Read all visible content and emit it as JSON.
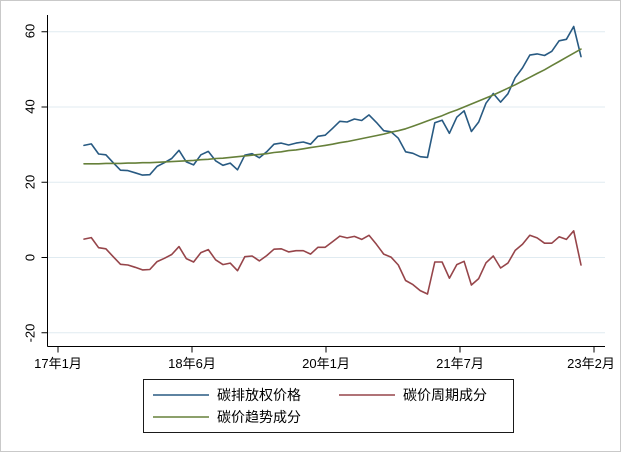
{
  "figure": {
    "background": "#ffffff",
    "border_color": "#c9c9c9",
    "axis_color": "#000000",
    "grid_color": "#e0ebf1",
    "legend_border_color": "#1a1a1a"
  },
  "y_axis": {
    "ticks": [
      "-20",
      "0",
      "20",
      "40",
      "60"
    ],
    "values": [
      -20,
      0,
      20,
      40,
      60
    ]
  },
  "x_axis": {
    "ticks": [
      "17年1月",
      "18年6月",
      "20年1月",
      "21年7月",
      "23年2月"
    ]
  },
  "legend": {
    "items": [
      {
        "label": "碳排放权价格",
        "color": "#285a82"
      },
      {
        "label": "碳价周期成分",
        "color": "#96454a"
      },
      {
        "label": "碳价趋势成分",
        "color": "#66803a"
      }
    ]
  },
  "chart_data": {
    "type": "line",
    "title": "",
    "xlabel": "",
    "ylabel": "",
    "grid": true,
    "legend_position": "bottom",
    "ylim": [
      -23,
      64
    ],
    "x_tick_labels": [
      "17年1月",
      "18年6月",
      "20年1月",
      "21年7月",
      "23年2月"
    ],
    "x": [
      "2017m5",
      "2017m6",
      "2017m7",
      "2017m8",
      "2017m9",
      "2017m10",
      "2017m11",
      "2017m12",
      "2018m1",
      "2018m2",
      "2018m3",
      "2018m4",
      "2018m5",
      "2018m6",
      "2018m7",
      "2018m8",
      "2018m9",
      "2018m10",
      "2018m11",
      "2018m12",
      "2019m1",
      "2019m2",
      "2019m3",
      "2019m4",
      "2019m5",
      "2019m6",
      "2019m7",
      "2019m8",
      "2019m9",
      "2019m10",
      "2019m11",
      "2019m12",
      "2020m1",
      "2020m2",
      "2020m3",
      "2020m4",
      "2020m5",
      "2020m6",
      "2020m7",
      "2020m8",
      "2020m9",
      "2020m10",
      "2020m11",
      "2020m12",
      "2021m1",
      "2021m2",
      "2021m3",
      "2021m4",
      "2021m5",
      "2021m6",
      "2021m7",
      "2021m8",
      "2021m9",
      "2021m10",
      "2021m11",
      "2021m12",
      "2022m1",
      "2022m2",
      "2022m3",
      "2022m4",
      "2022m5",
      "2022m6",
      "2022m7",
      "2022m8",
      "2022m9",
      "2022m10",
      "2022m11",
      "2022m12",
      "2023m1"
    ],
    "series": [
      {
        "name": "碳排放权价格",
        "color": "#285a82",
        "values": [
          29.8,
          30.2,
          27.5,
          27.3,
          25.2,
          23.2,
          23.1,
          22.5,
          21.9,
          22.0,
          24.2,
          25.2,
          26.3,
          28.5,
          25.4,
          24.6,
          27.3,
          28.2,
          25.7,
          24.5,
          25.1,
          23.3,
          27.2,
          27.6,
          26.5,
          28.1,
          30.1,
          30.4,
          29.9,
          30.4,
          30.7,
          30.1,
          32.2,
          32.5,
          34.3,
          36.2,
          36.0,
          36.8,
          36.4,
          37.9,
          35.9,
          33.7,
          33.4,
          31.7,
          28.1,
          27.7,
          26.8,
          26.6,
          35.8,
          36.5,
          33.0,
          37.3,
          39.0,
          33.5,
          36.0,
          41.0,
          43.6,
          41.3,
          43.5,
          47.8,
          50.4,
          53.8,
          54.1,
          53.7,
          54.8,
          57.6,
          58.0,
          61.4,
          53.4
        ]
      },
      {
        "name": "碳价周期成分",
        "color": "#96454a",
        "values": [
          4.9,
          5.3,
          2.6,
          2.3,
          0.2,
          -1.8,
          -2.0,
          -2.6,
          -3.3,
          -3.2,
          -1.1,
          -0.2,
          0.8,
          2.9,
          -0.3,
          -1.2,
          1.3,
          2.1,
          -0.6,
          -1.9,
          -1.5,
          -3.5,
          0.2,
          0.4,
          -0.9,
          0.5,
          2.2,
          2.3,
          1.5,
          1.8,
          1.8,
          0.9,
          2.7,
          2.7,
          4.2,
          5.7,
          5.2,
          5.6,
          4.8,
          5.9,
          3.5,
          0.9,
          0.1,
          -2.0,
          -6.1,
          -7.2,
          -8.8,
          -9.7,
          -1.2,
          -1.2,
          -5.5,
          -1.9,
          -1.0,
          -7.3,
          -5.6,
          -1.4,
          0.4,
          -2.8,
          -1.5,
          1.9,
          3.5,
          5.9,
          5.2,
          3.8,
          3.8,
          5.5,
          4.8,
          7.1,
          -2.0
        ]
      },
      {
        "name": "碳价趋势成分",
        "color": "#66803a",
        "values": [
          24.9,
          24.9,
          24.9,
          25.0,
          25.0,
          25.0,
          25.1,
          25.1,
          25.2,
          25.2,
          25.3,
          25.4,
          25.5,
          25.6,
          25.7,
          25.8,
          26.0,
          26.1,
          26.3,
          26.4,
          26.6,
          26.8,
          27.0,
          27.2,
          27.4,
          27.6,
          27.9,
          28.1,
          28.4,
          28.6,
          28.9,
          29.2,
          29.5,
          29.8,
          30.1,
          30.5,
          30.8,
          31.2,
          31.6,
          32.0,
          32.4,
          32.8,
          33.3,
          33.7,
          34.2,
          34.9,
          35.6,
          36.3,
          37.0,
          37.7,
          38.5,
          39.2,
          40.0,
          40.8,
          41.6,
          42.4,
          43.2,
          44.1,
          45.0,
          45.9,
          46.9,
          47.9,
          48.9,
          49.9,
          51.0,
          52.1,
          53.2,
          54.3,
          55.4
        ]
      }
    ]
  }
}
